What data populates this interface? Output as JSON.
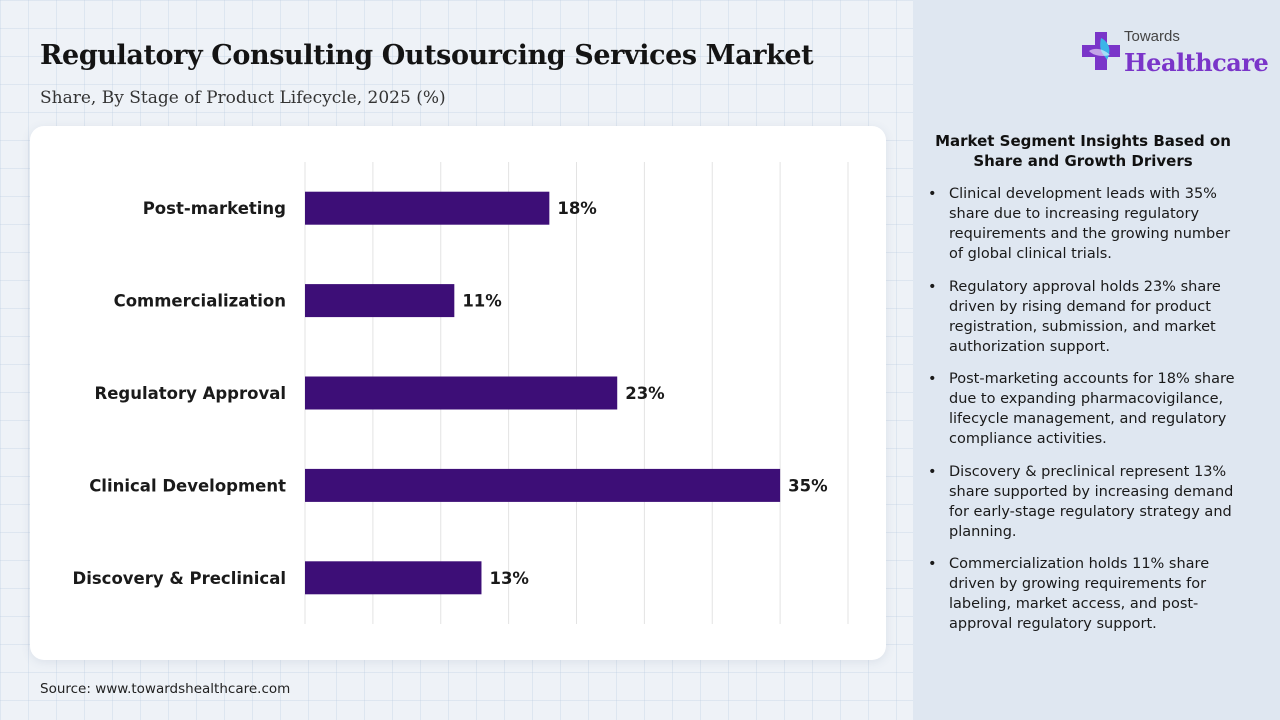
{
  "header": {
    "title": "Regulatory Consulting Outsourcing Services Market",
    "subtitle": "Share, By Stage of Product Lifecycle, 2025 (%)"
  },
  "logo": {
    "top_text": "Towards",
    "main_text": "Healthcare",
    "icon": "medical-cross-icon",
    "colors": {
      "primary": "#7a35c9",
      "accent": "#3bb5e8"
    }
  },
  "chart_data": {
    "type": "bar",
    "orientation": "horizontal",
    "categories": [
      "Post-marketing",
      "Commercialization",
      "Regulatory Approval",
      "Clinical Development",
      "Discovery & Preclinical"
    ],
    "values": [
      18,
      11,
      23,
      35,
      13
    ],
    "value_labels": [
      "18%",
      "11%",
      "23%",
      "35%",
      "13%"
    ],
    "title": "",
    "xlabel": "",
    "ylabel": "",
    "xlim": [
      0,
      40
    ],
    "grid": true,
    "bar_color": "#3d0e77"
  },
  "insights": {
    "title": "Market Segment Insights Based on Share and Growth Drivers",
    "bullet": "•",
    "items": [
      "Clinical development leads with 35% share due to increasing regulatory requirements and the growing number of global clinical trials.",
      "Regulatory approval holds 23% share driven by rising demand for product registration, submission, and market authorization support.",
      "Post-marketing accounts for 18% share due to expanding pharmacovigilance, lifecycle management, and regulatory compliance activities.",
      "Discovery & preclinical represent 13% share supported by increasing demand for early-stage regulatory strategy and planning.",
      "Commercialization holds 11% share driven by growing requirements for labeling, market access, and post-approval regulatory support."
    ]
  },
  "footer": {
    "source": "Source: www.towardshealthcare.com"
  }
}
